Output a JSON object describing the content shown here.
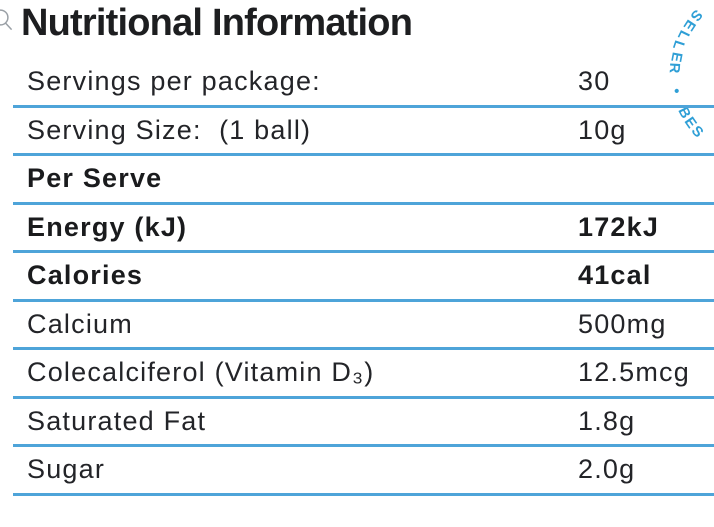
{
  "page": {
    "title": "Nutritional Information"
  },
  "badge": {
    "arc_text": "SELLER • BES",
    "color": "#2f9fd6"
  },
  "table": {
    "accent_color": "#4ea4d9",
    "rows": [
      {
        "label": "Servings per package:",
        "value": "30",
        "bold": false
      },
      {
        "label": "Serving Size:  (1 ball)",
        "value": "10g",
        "bold": false
      },
      {
        "label": "Per Serve",
        "value": "",
        "bold": true
      },
      {
        "label": "Energy (kJ)",
        "value": "172kJ",
        "bold": true
      },
      {
        "label": "Calories",
        "value": "41cal",
        "bold": true
      },
      {
        "label": "Calcium",
        "value": "500mg",
        "bold": false
      },
      {
        "label": "Colecalciferol (Vitamin D₃)",
        "value": "12.5mcg",
        "bold": false
      },
      {
        "label": "Saturated Fat",
        "value": "1.8g",
        "bold": false
      },
      {
        "label": "Sugar",
        "value": "2.0g",
        "bold": false
      }
    ]
  }
}
